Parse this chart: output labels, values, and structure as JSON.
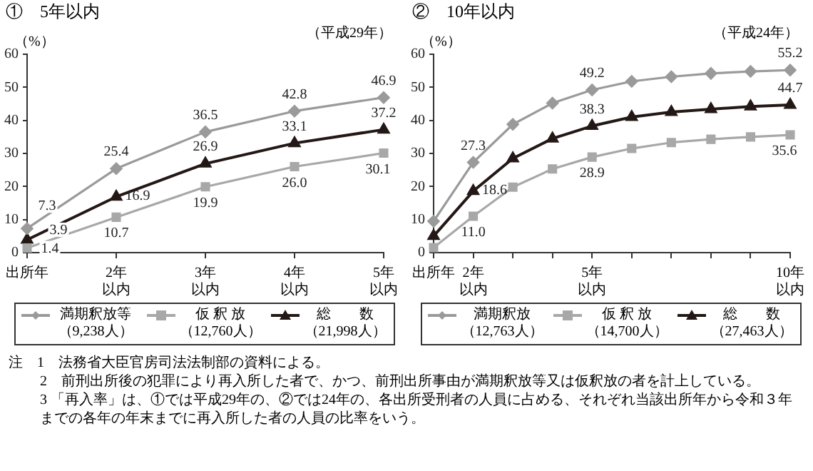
{
  "chart_data": [
    {
      "type": "line",
      "title": "①　5年以内",
      "subtitle": "（平成29年）",
      "ylabel": "（%）",
      "categories": [
        "出所年",
        "2年以内",
        "3年以内",
        "4年以内",
        "5年以内"
      ],
      "ylim": [
        0,
        60
      ],
      "yticks": [
        0,
        10,
        20,
        30,
        40,
        50,
        60
      ],
      "grid": false,
      "legend": "bottom",
      "series": [
        {
          "name": "満期釈放等（9,238人）",
          "color": "#9a9a9a",
          "marker": "diamond",
          "values": [
            7.3,
            25.4,
            36.5,
            42.8,
            46.9
          ],
          "value_labels": [
            "7.3",
            "25.4",
            "36.5",
            "42.8",
            "46.9"
          ]
        },
        {
          "name": "仮 釈 放（12,760人）",
          "color": "#a8a8a8",
          "marker": "square",
          "values": [
            1.4,
            10.7,
            19.9,
            26.0,
            30.1
          ],
          "value_labels": [
            "1.4",
            "10.7",
            "19.9",
            "26.0",
            "30.1"
          ]
        },
        {
          "name": "総　　数（21,998人）",
          "color": "#231815",
          "marker": "triangle",
          "values": [
            3.9,
            16.9,
            26.9,
            33.1,
            37.2
          ],
          "value_labels": [
            "3.9",
            "16.9",
            "26.9",
            "33.1",
            "37.2"
          ]
        }
      ],
      "annotations": [
        "注　1　法務省大臣官房司法法制部の資料による。",
        "2　前刑出所後の犯罪により再入所した者で、かつ、前刑出所事由が満期釈放等又は仮釈放の者を計上している。",
        "3 「再入率」は、①では平成29年の、②では24年の、各出所受刑者の人員に占める、それぞれ当該出所年から令和３年までの各年の年末までに再入所した者の人員の比率をいう。"
      ]
    },
    {
      "type": "line",
      "title": "②　10年以内",
      "subtitle": "（平成24年）",
      "ylabel": "（%）",
      "categories": [
        "出所年",
        "2年以内",
        null,
        null,
        "5年以内",
        null,
        null,
        null,
        null,
        "10年以内"
      ],
      "ylim": [
        0,
        60
      ],
      "yticks": [
        0,
        10,
        20,
        30,
        40,
        50,
        60
      ],
      "grid": false,
      "legend": "bottom",
      "series": [
        {
          "name": "満期釈放（12,763人）",
          "color": "#9a9a9a",
          "marker": "diamond",
          "values": [
            9.5,
            27.3,
            38.8,
            45.2,
            49.2,
            51.8,
            53.2,
            54.2,
            54.8,
            55.2
          ],
          "value_labels": [
            null,
            "27.3",
            null,
            null,
            "49.2",
            null,
            null,
            null,
            null,
            "55.2"
          ]
        },
        {
          "name": "仮 釈 放（14,700人）",
          "color": "#a8a8a8",
          "marker": "square",
          "values": [
            1.5,
            11.0,
            19.8,
            25.3,
            28.9,
            31.5,
            33.3,
            34.3,
            35.0,
            35.6
          ],
          "value_labels": [
            null,
            "11.0",
            null,
            null,
            "28.9",
            null,
            null,
            null,
            null,
            "35.6"
          ]
        },
        {
          "name": "総　　数（27,463人）",
          "color": "#231815",
          "marker": "triangle",
          "values": [
            5.0,
            18.6,
            28.5,
            34.5,
            38.3,
            41.0,
            42.5,
            43.4,
            44.2,
            44.7
          ],
          "value_labels": [
            null,
            "18.6",
            null,
            null,
            "38.3",
            null,
            null,
            null,
            null,
            "44.7"
          ]
        }
      ]
    }
  ]
}
